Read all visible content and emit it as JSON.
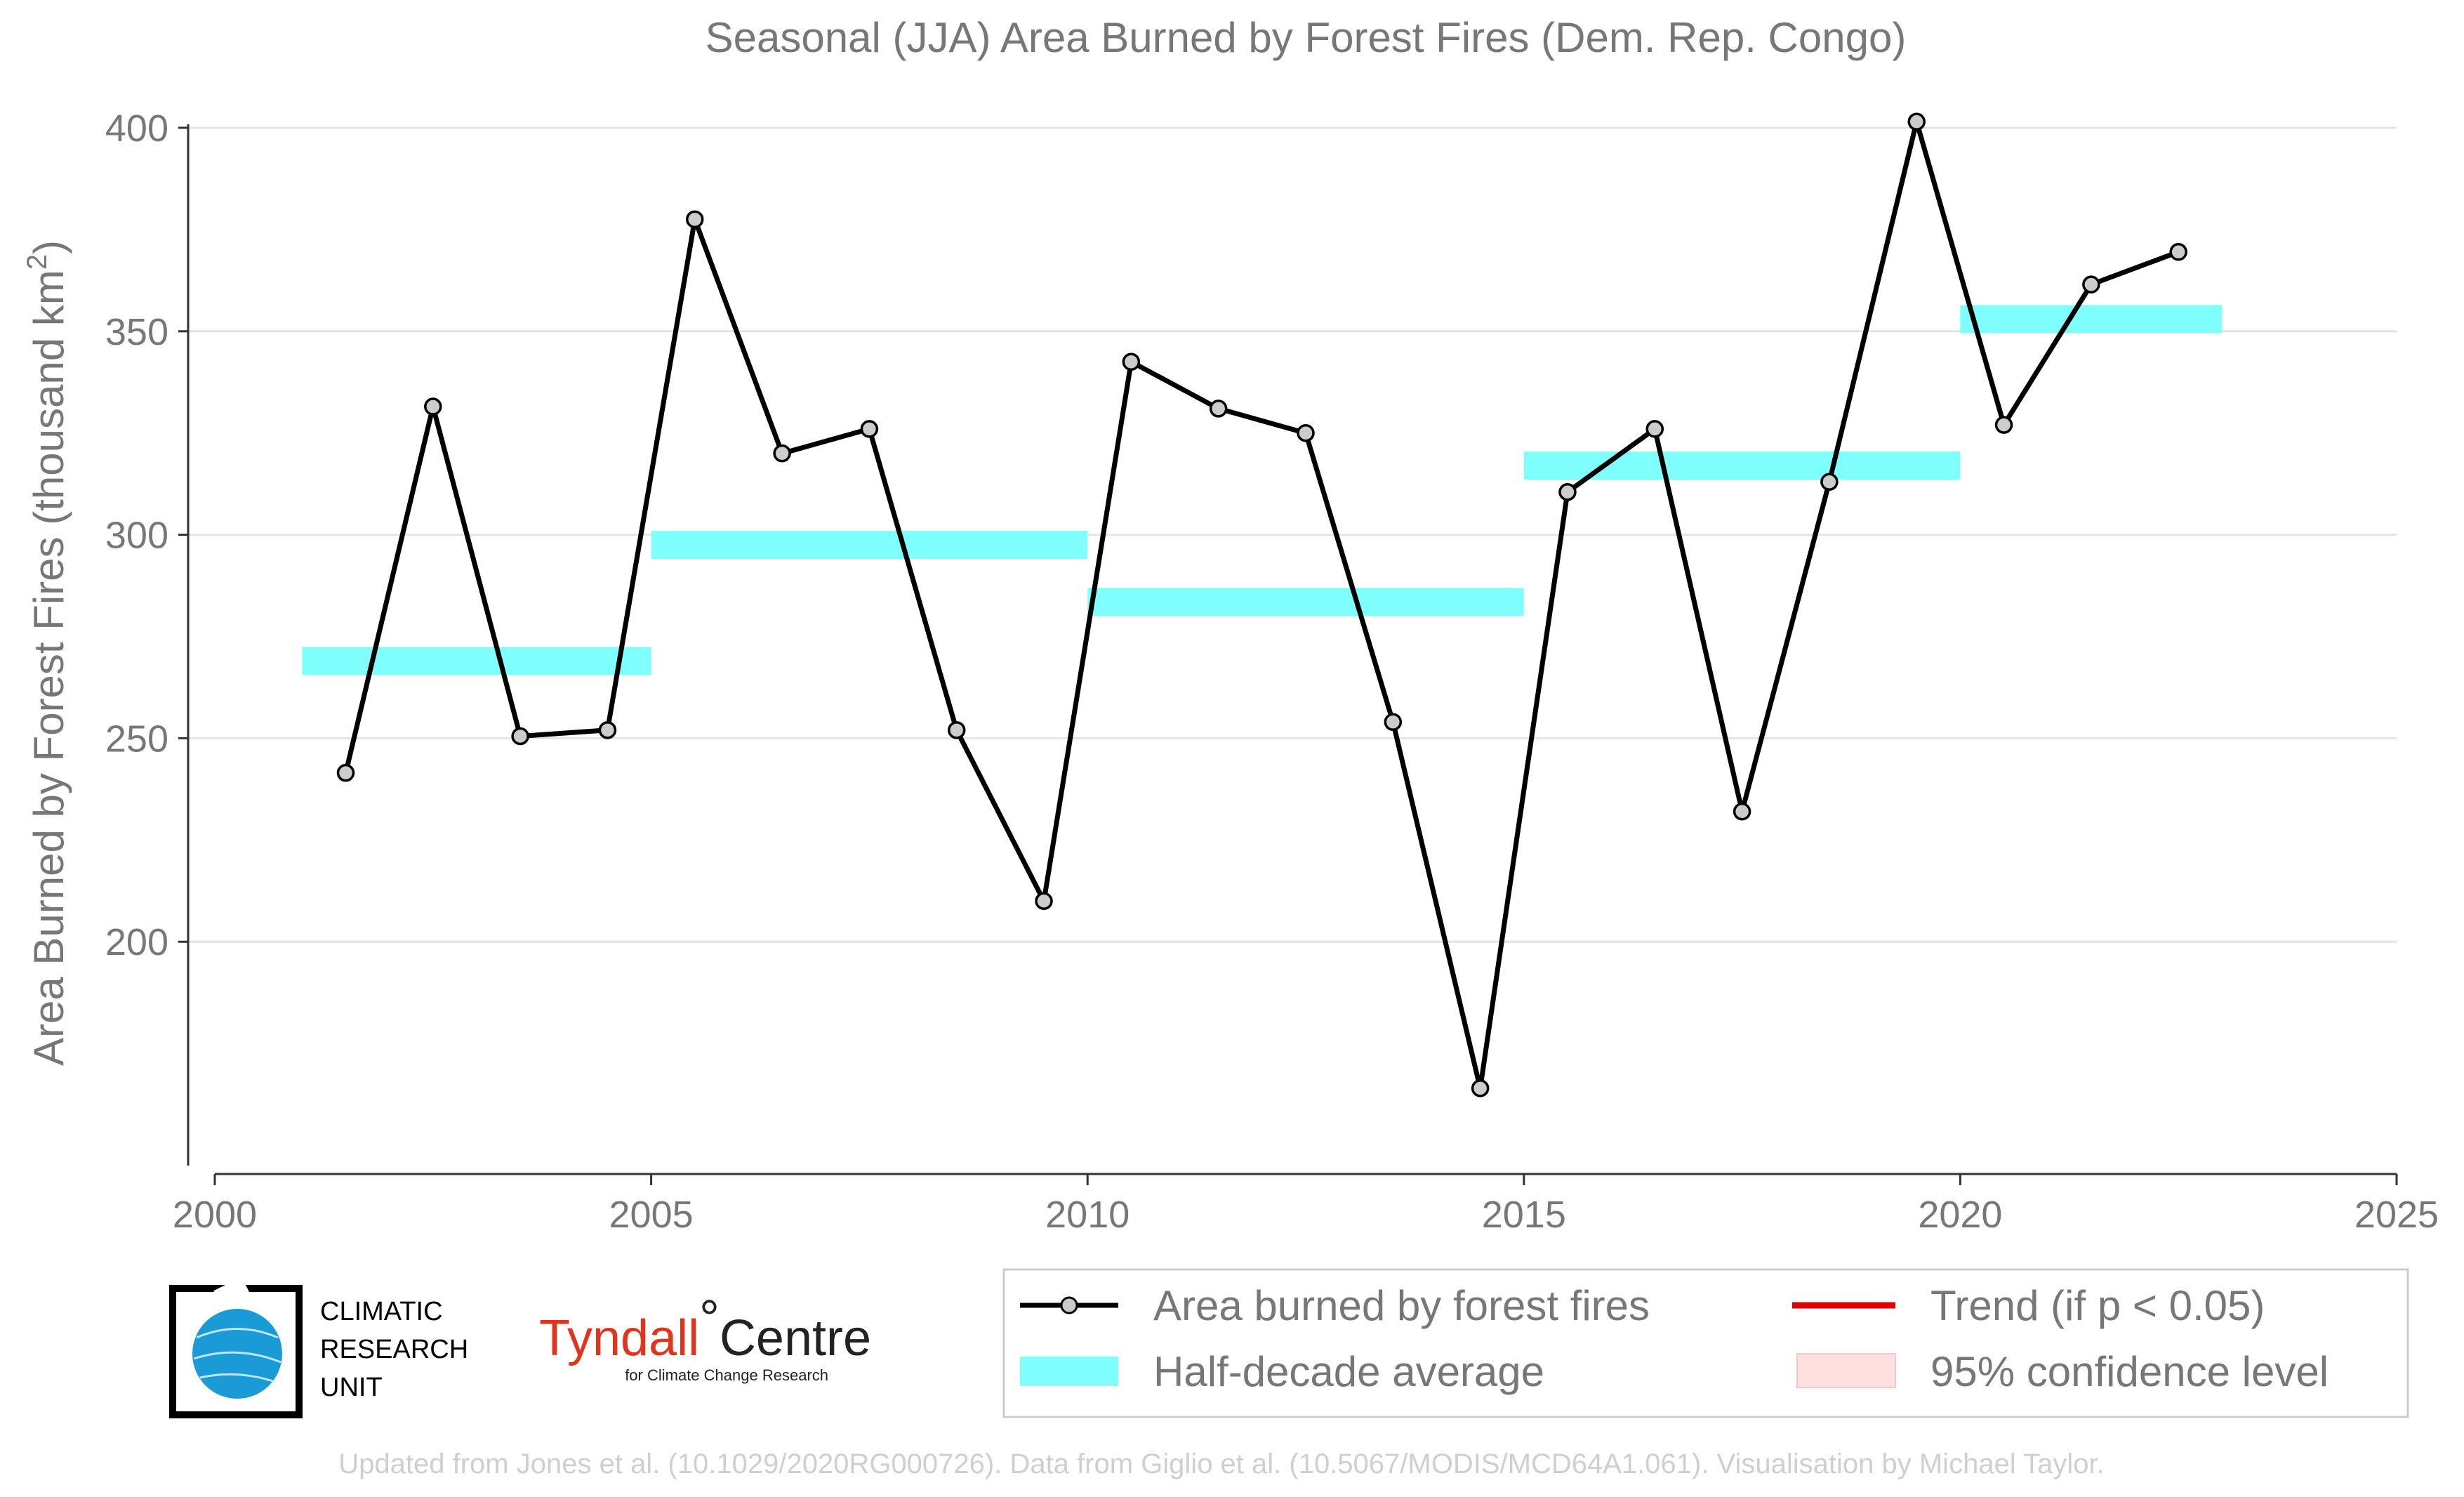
{
  "chart_data": {
    "type": "line",
    "title": "Seasonal (JJA) Area Burned by Forest Fires (Dem. Rep. Congo)",
    "ylabel_main": "Area Burned by Forest Fires (thousand km",
    "ylabel_sup": "2",
    "ylabel_close": ")",
    "xlim": [
      2000,
      2025
    ],
    "ylim": [
      145,
      400
    ],
    "xticks": [
      2000,
      2005,
      2010,
      2015,
      2020,
      2025
    ],
    "yticks": [
      200,
      250,
      300,
      350,
      400
    ],
    "grid": "horizontal",
    "x_tick_labels": [
      "2000",
      "2005",
      "2010",
      "2015",
      "2020",
      "2025"
    ],
    "y_tick_labels": [
      "200",
      "250",
      "300",
      "350",
      "400"
    ],
    "series": [
      {
        "name": "Area burned by forest fires",
        "color": "#000000",
        "marker_color": "#cccccc",
        "x": [
          2001.5,
          2002.5,
          2003.5,
          2004.5,
          2005.5,
          2006.5,
          2007.5,
          2008.5,
          2009.5,
          2010.5,
          2011.5,
          2012.5,
          2013.5,
          2014.5,
          2015.5,
          2016.5,
          2017.5,
          2018.5,
          2019.5,
          2020.5,
          2021.5,
          2022.5
        ],
        "y": [
          241.5,
          331.5,
          250.5,
          252,
          377.5,
          320,
          326,
          252,
          210,
          342.5,
          331,
          325,
          254,
          164,
          310.5,
          326,
          232,
          313,
          401.5,
          327,
          361.5,
          369.5
        ]
      }
    ],
    "half_decade_average": {
      "name": "Half-decade average",
      "color": "#80ffff",
      "segments": [
        {
          "x0": 2001,
          "x1": 2005,
          "y": 269
        },
        {
          "x0": 2005,
          "x1": 2010,
          "y": 297.5
        },
        {
          "x0": 2010,
          "x1": 2015,
          "y": 283.5
        },
        {
          "x0": 2015,
          "x1": 2020,
          "y": 317
        },
        {
          "x0": 2020,
          "x1": 2023,
          "y": 353
        }
      ]
    },
    "legend": {
      "placement": "bottom-right",
      "items": [
        {
          "label": "Area burned by forest fires",
          "kind": "line-marker",
          "color": "#000000"
        },
        {
          "label": "Trend (if p < 0.05)",
          "kind": "line",
          "color": "#e00000"
        },
        {
          "label": "Half-decade average",
          "kind": "band",
          "color": "#80ffff"
        },
        {
          "label": "95% confidence level",
          "kind": "patch",
          "color": "#ffe0e0"
        }
      ]
    }
  },
  "logos": {
    "cru": {
      "line1": "CLIMATIC",
      "line2": "RESEARCH",
      "line3": "UNIT",
      "globe_color": "#1a9ad6"
    },
    "tyndall": {
      "main": "Tyndall",
      "degree": "°",
      "centre": "Centre",
      "sub": "for Climate Change Research"
    }
  },
  "footer": "Updated from Jones et al. (10.1029/2020RG000726). Data from Giglio et al. (10.5067/MODIS/MCD64A1.061). Visualisation by Michael Taylor."
}
